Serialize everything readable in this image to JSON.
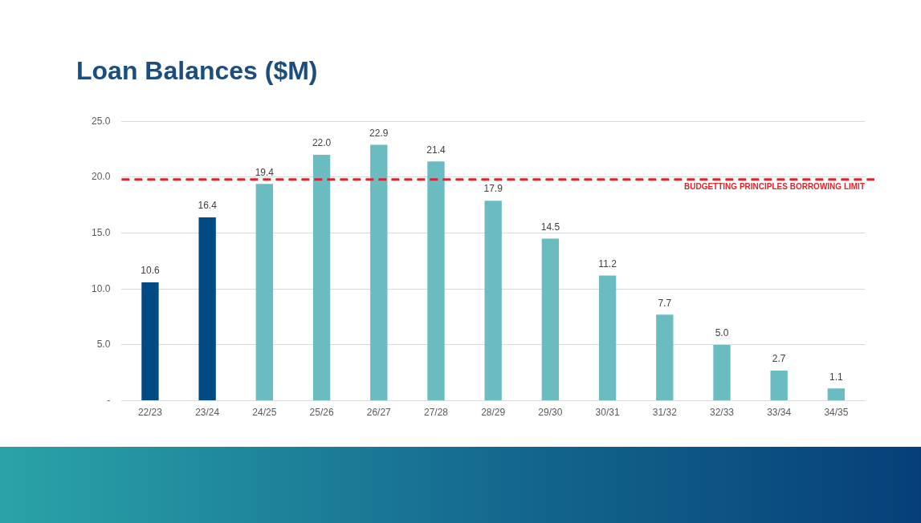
{
  "chart_data": {
    "type": "bar",
    "title": "Loan Balances ($M)",
    "categories": [
      "22/23",
      "23/24",
      "24/25",
      "25/26",
      "26/27",
      "27/28",
      "28/29",
      "29/30",
      "30/31",
      "31/32",
      "32/33",
      "33/34",
      "34/35"
    ],
    "values": [
      10.6,
      16.4,
      19.4,
      22.0,
      22.9,
      21.4,
      17.9,
      14.5,
      11.2,
      7.7,
      5.0,
      2.7,
      1.1
    ],
    "colors": [
      "#004b84",
      "#004b84",
      "#6bbcc1",
      "#6bbcc1",
      "#6bbcc1",
      "#6bbcc1",
      "#6bbcc1",
      "#6bbcc1",
      "#6bbcc1",
      "#6bbcc1",
      "#6bbcc1",
      "#6bbcc1",
      "#6bbcc1"
    ],
    "ylim": [
      0,
      25
    ],
    "yticks": [
      {
        "value": 0,
        "label": "-"
      },
      {
        "value": 5,
        "label": "5.0"
      },
      {
        "value": 10,
        "label": "10.0"
      },
      {
        "value": 15,
        "label": "15.0"
      },
      {
        "value": 20,
        "label": "20.0"
      },
      {
        "value": 25,
        "label": "25.0"
      }
    ],
    "value_labels": [
      "10.6",
      "16.4",
      "19.4",
      "22.0",
      "22.9",
      "21.4",
      "17.9",
      "14.5",
      "11.2",
      "7.7",
      "5.0",
      "2.7",
      "1.1"
    ],
    "grid": "y",
    "legend": false,
    "ref_lines": [
      {
        "axis": "y",
        "value": 19.8,
        "label": "BUDGETTING PRINCIPLES BORROWING LIMIT",
        "color": "#d9262a",
        "line_style": "dashed"
      }
    ]
  }
}
